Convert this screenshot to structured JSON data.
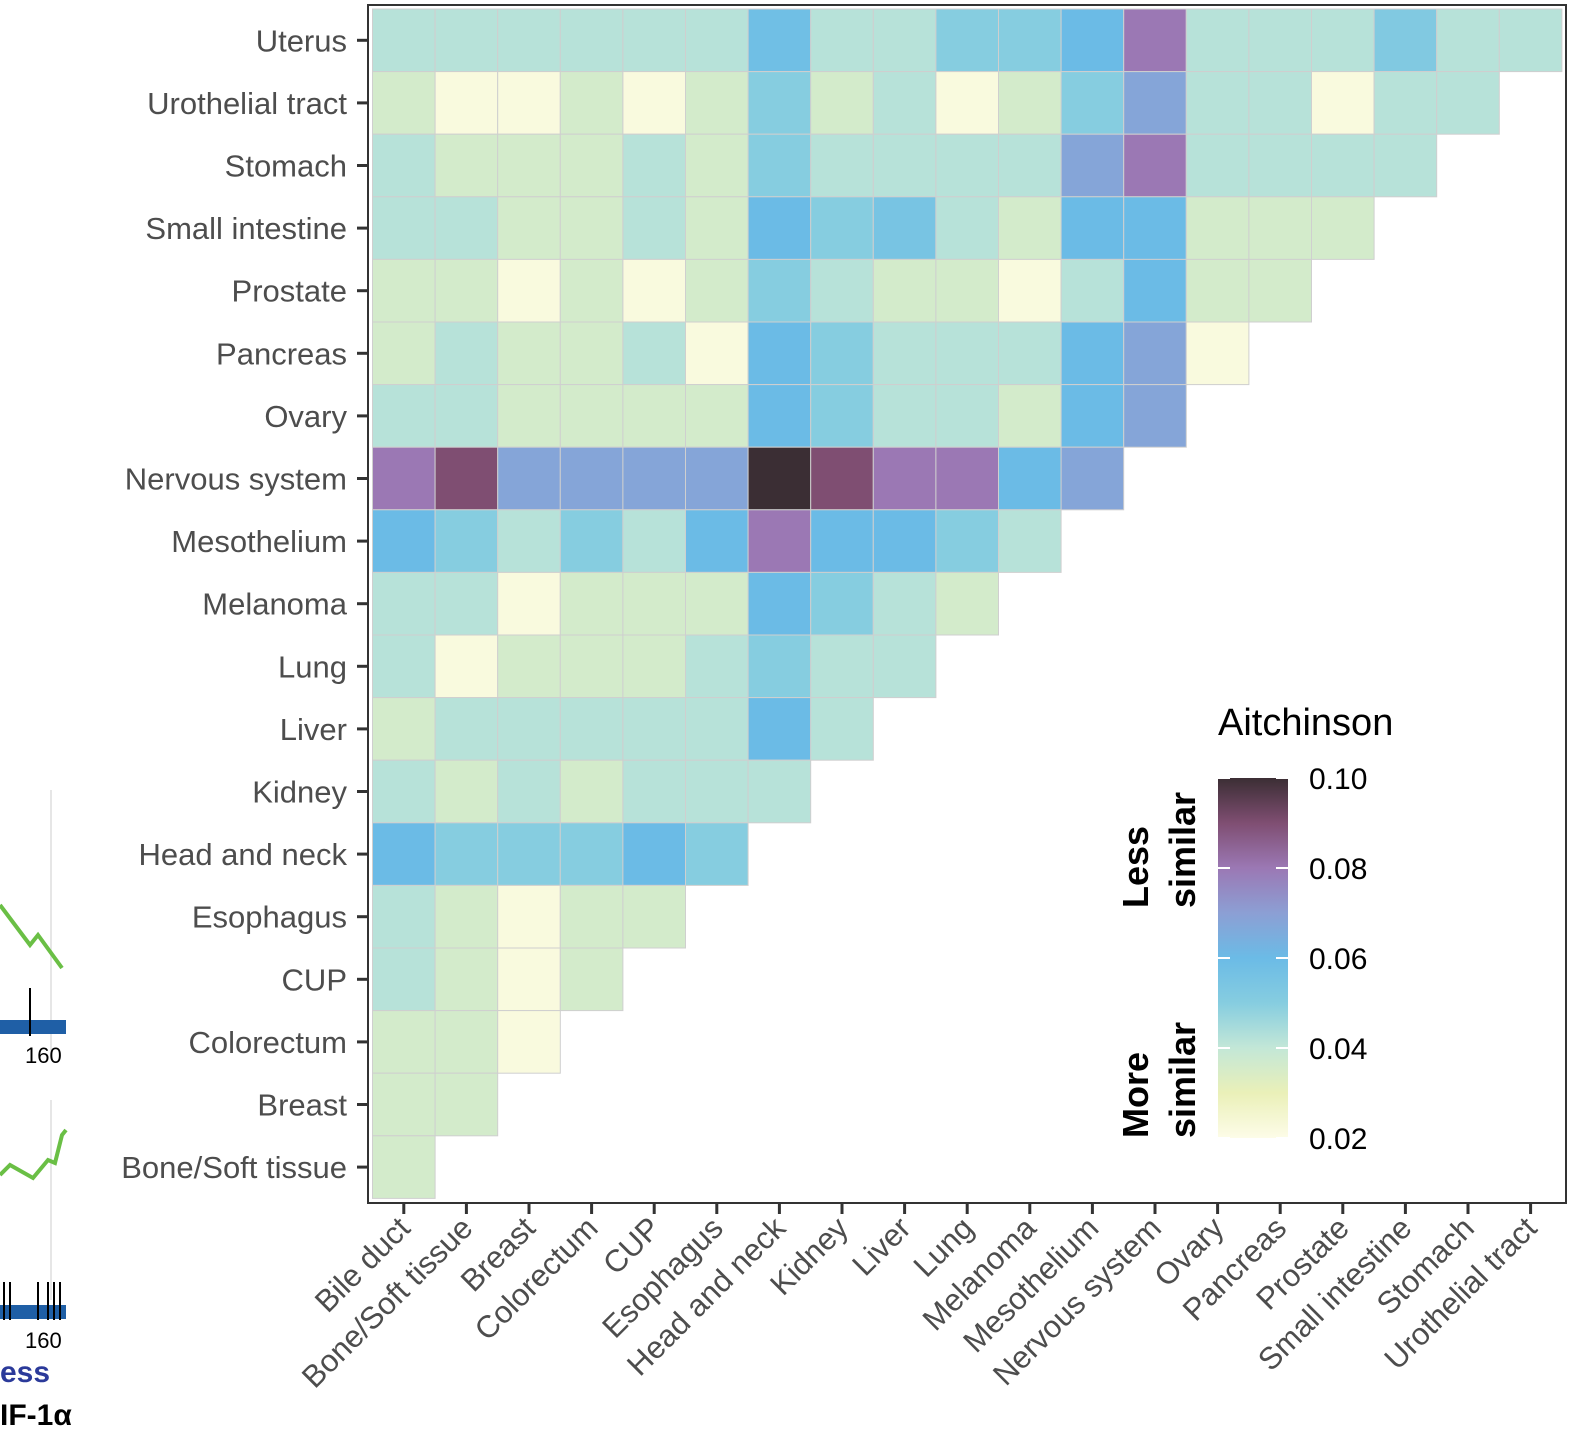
{
  "chart_data": {
    "type": "heatmap",
    "title": "",
    "xlabel": "",
    "ylabel": "",
    "x_categories": [
      "Bile duct",
      "Bone/Soft tissue",
      "Breast",
      "Colorectum",
      "CUP",
      "Esophagus",
      "Head and neck",
      "Kidney",
      "Liver",
      "Lung",
      "Melanoma",
      "Mesothelium",
      "Nervous system",
      "Ovary",
      "Pancreas",
      "Prostate",
      "Small intestine",
      "Stomach",
      "Urothelial tract"
    ],
    "y_categories": [
      "Uterus",
      "Urothelial tract",
      "Stomach",
      "Small intestine",
      "Prostate",
      "Pancreas",
      "Ovary",
      "Nervous system",
      "Mesothelium",
      "Melanoma",
      "Lung",
      "Liver",
      "Kidney",
      "Head and neck",
      "Esophagus",
      "CUP",
      "Colorectum",
      "Breast",
      "Bone/Soft tissue"
    ],
    "values": [
      [
        0.042,
        0.042,
        0.042,
        0.042,
        0.042,
        0.042,
        0.058,
        0.042,
        0.042,
        0.05,
        0.05,
        0.06,
        0.08,
        0.042,
        0.042,
        0.042,
        0.052,
        0.042,
        0.042
      ],
      [
        0.036,
        0.022,
        0.022,
        0.036,
        0.022,
        0.036,
        0.05,
        0.036,
        0.042,
        0.022,
        0.036,
        0.05,
        0.068,
        0.042,
        0.042,
        0.022,
        0.042,
        0.042
      ],
      [
        0.042,
        0.036,
        0.036,
        0.036,
        0.042,
        0.036,
        0.05,
        0.042,
        0.042,
        0.042,
        0.042,
        0.068,
        0.08,
        0.042,
        0.042,
        0.042,
        0.042
      ],
      [
        0.042,
        0.042,
        0.036,
        0.036,
        0.042,
        0.036,
        0.06,
        0.05,
        0.055,
        0.042,
        0.036,
        0.06,
        0.06,
        0.036,
        0.036,
        0.036
      ],
      [
        0.036,
        0.036,
        0.022,
        0.036,
        0.022,
        0.036,
        0.05,
        0.042,
        0.036,
        0.036,
        0.022,
        0.042,
        0.06,
        0.036,
        0.036
      ],
      [
        0.036,
        0.042,
        0.036,
        0.036,
        0.042,
        0.022,
        0.06,
        0.05,
        0.042,
        0.042,
        0.042,
        0.06,
        0.068,
        0.022
      ],
      [
        0.042,
        0.042,
        0.036,
        0.036,
        0.036,
        0.036,
        0.06,
        0.05,
        0.042,
        0.042,
        0.036,
        0.06,
        0.068
      ],
      [
        0.08,
        0.09,
        0.068,
        0.068,
        0.068,
        0.068,
        0.1,
        0.09,
        0.08,
        0.08,
        0.06,
        0.068
      ],
      [
        0.06,
        0.05,
        0.042,
        0.05,
        0.042,
        0.06,
        0.08,
        0.06,
        0.06,
        0.05,
        0.042
      ],
      [
        0.042,
        0.042,
        0.022,
        0.036,
        0.036,
        0.036,
        0.06,
        0.05,
        0.042,
        0.036
      ],
      [
        0.042,
        0.022,
        0.036,
        0.036,
        0.036,
        0.042,
        0.05,
        0.042,
        0.042
      ],
      [
        0.036,
        0.042,
        0.042,
        0.042,
        0.042,
        0.042,
        0.06,
        0.042
      ],
      [
        0.042,
        0.036,
        0.042,
        0.036,
        0.042,
        0.042,
        0.042
      ],
      [
        0.06,
        0.05,
        0.05,
        0.05,
        0.06,
        0.05
      ],
      [
        0.042,
        0.036,
        0.022,
        0.036,
        0.036
      ],
      [
        0.042,
        0.036,
        0.022,
        0.036
      ],
      [
        0.036,
        0.036,
        0.022
      ],
      [
        0.036,
        0.036
      ],
      [
        0.036
      ]
    ],
    "legend": {
      "title": "Aitchinson",
      "ticks": [
        "0.10",
        "0.08",
        "0.06",
        "0.04",
        "0.02"
      ],
      "range": [
        0.02,
        0.1
      ],
      "top_label_line1": "Less",
      "top_label_line2": "similar",
      "bottom_label_line1": "More",
      "bottom_label_line2": "similar",
      "placement": "bottom-right-inside",
      "color_stops": [
        "#fdfce8",
        "#eaf0b8",
        "#c3e7d7",
        "#86cde0",
        "#6bbbe6",
        "#8c9fd4",
        "#9b78b4",
        "#7f4e72",
        "#3b2e34"
      ]
    },
    "grid": false
  },
  "fragment": {
    "tick_label_top": "160",
    "tick_label_bottom": "160",
    "text_blue": "ess",
    "text_black": "IF-1α"
  }
}
